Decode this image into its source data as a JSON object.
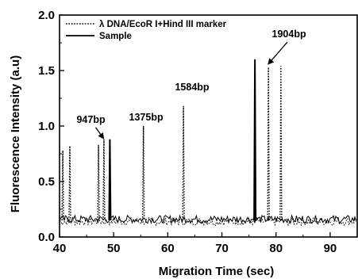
{
  "chart_data": {
    "type": "line",
    "xlabel": "Migration Time (sec)",
    "ylabel": "Fluorescence Intensity (a.u)",
    "xlim": [
      40,
      95
    ],
    "ylim": [
      0.0,
      2.0
    ],
    "x_ticks": [
      40,
      50,
      60,
      70,
      80,
      90
    ],
    "y_ticks": [
      0.0,
      0.5,
      1.0,
      1.5,
      2.0
    ],
    "x_tick_labels": [
      "40",
      "50",
      "60",
      "70",
      "80",
      "90"
    ],
    "y_tick_labels": [
      "0.0",
      "0.5",
      "1.0",
      "1.5",
      "2.0"
    ],
    "grid": false,
    "legend": {
      "placement": "top-left",
      "entries": [
        {
          "name": "λ DNA/EcoR I+Hind III marker",
          "style": "dotted"
        },
        {
          "name": "Sample",
          "style": "solid"
        }
      ]
    },
    "series": [
      {
        "name": "λ DNA/EcoR I+Hind III marker",
        "style": "dotted",
        "color": "#000000",
        "baseline": 0.15,
        "peaks": [
          {
            "x": 40.6,
            "y": 0.78
          },
          {
            "x": 41.9,
            "y": 0.82
          },
          {
            "x": 47.2,
            "y": 0.83
          },
          {
            "x": 48.2,
            "y": 0.88
          },
          {
            "x": 55.5,
            "y": 1.0
          },
          {
            "x": 62.9,
            "y": 1.18
          },
          {
            "x": 78.6,
            "y": 1.53
          },
          {
            "x": 80.9,
            "y": 1.54
          }
        ]
      },
      {
        "name": "Sample",
        "style": "solid",
        "color": "#000000",
        "baseline": 0.15,
        "peaks": [
          {
            "x": 49.3,
            "y": 0.88
          },
          {
            "x": 76.1,
            "y": 1.6
          }
        ]
      }
    ],
    "annotations": [
      {
        "text": "947bp",
        "x": 45.8,
        "y": 1.03,
        "arrow_to": {
          "x": 48.1,
          "y": 0.89
        }
      },
      {
        "text": "1375bp",
        "x": 56.0,
        "y": 1.05
      },
      {
        "text": "1584bp",
        "x": 64.5,
        "y": 1.32
      },
      {
        "text": "1904bp",
        "x": 82.4,
        "y": 1.8,
        "arrow_to": {
          "x": 78.6,
          "y": 1.56
        }
      }
    ]
  }
}
